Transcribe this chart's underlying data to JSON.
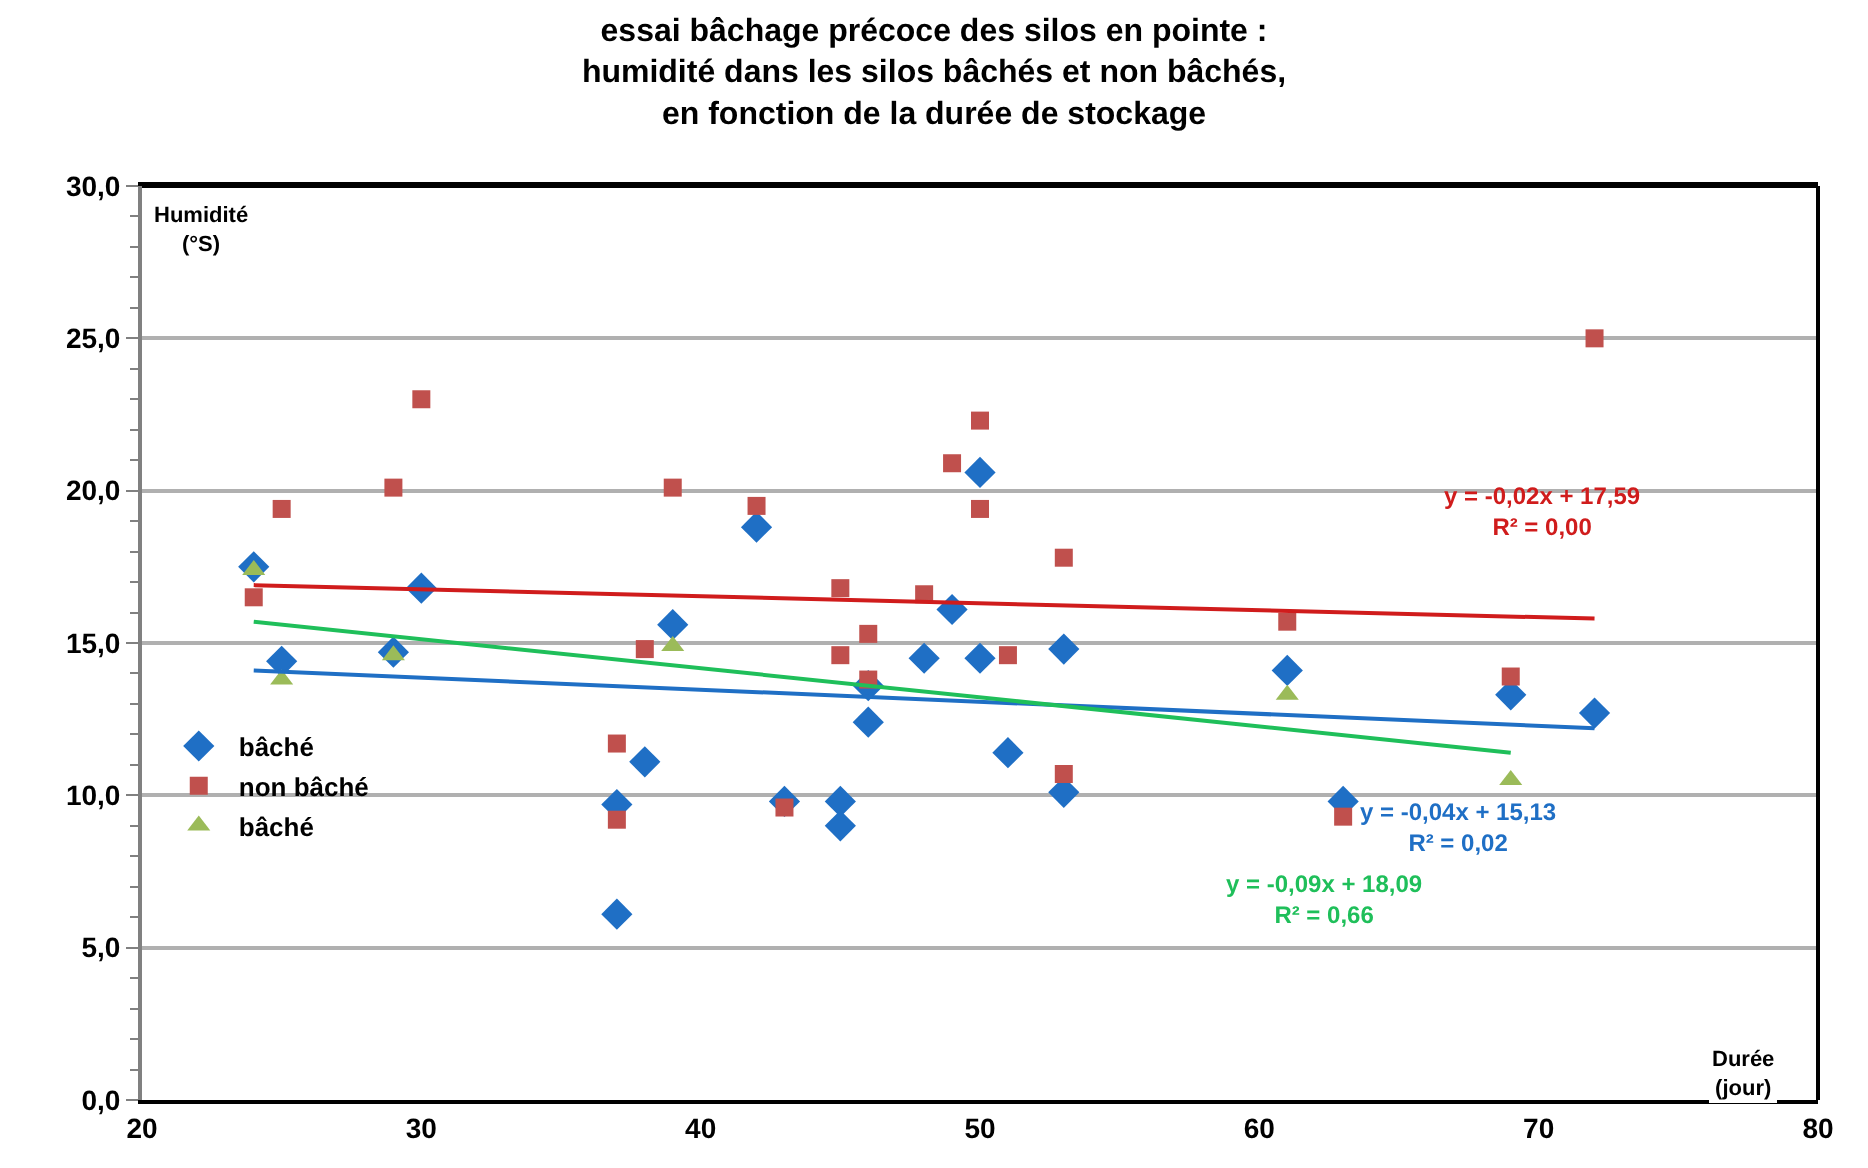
{
  "chart_data": {
    "type": "scatter",
    "title": "essai bâchage précoce des silos en pointe :\nhumidité dans les silos bâchés et non bâchés,\nen fonction de la durée de stockage",
    "xlabel": "Durée\n(jour)",
    "ylabel": "Humidité\n(°S)",
    "xlim": [
      20,
      80
    ],
    "xticks": [
      20,
      30,
      40,
      50,
      60,
      70,
      80
    ],
    "ylim": [
      0,
      30
    ],
    "yticks": [
      {
        "value": 0,
        "label": "0,0"
      },
      {
        "value": 1,
        "label": null
      },
      {
        "value": 2,
        "label": null
      },
      {
        "value": 3,
        "label": null
      },
      {
        "value": 4,
        "label": null
      },
      {
        "value": 5,
        "label": "5,0"
      },
      {
        "value": 6,
        "label": null
      },
      {
        "value": 7,
        "label": null
      },
      {
        "value": 8,
        "label": null
      },
      {
        "value": 9,
        "label": null
      },
      {
        "value": 10,
        "label": "10,0"
      },
      {
        "value": 11,
        "label": null
      },
      {
        "value": 12,
        "label": null
      },
      {
        "value": 13,
        "label": null
      },
      {
        "value": 14,
        "label": null
      },
      {
        "value": 15,
        "label": "15,0"
      },
      {
        "value": 16,
        "label": null
      },
      {
        "value": 17,
        "label": null
      },
      {
        "value": 18,
        "label": null
      },
      {
        "value": 19,
        "label": null
      },
      {
        "value": 20,
        "label": "20,0"
      },
      {
        "value": 21,
        "label": null
      },
      {
        "value": 22,
        "label": null
      },
      {
        "value": 23,
        "label": null
      },
      {
        "value": 24,
        "label": null
      },
      {
        "value": 25,
        "label": "25,0"
      },
      {
        "value": 26,
        "label": null
      },
      {
        "value": 27,
        "label": null
      },
      {
        "value": 28,
        "label": null
      },
      {
        "value": 29,
        "label": null
      },
      {
        "value": 30,
        "label": "30,0"
      }
    ],
    "grid": "y",
    "legend": "left",
    "series": [
      {
        "name": "bâché",
        "color": "#1f6fc5",
        "marker": "diamond",
        "x": [
          24,
          25,
          29,
          30,
          37,
          37,
          38,
          39,
          42,
          43,
          45,
          45,
          46,
          46,
          48,
          49,
          50,
          50,
          51,
          53,
          53,
          61,
          63,
          69,
          72
        ],
        "values": [
          17.5,
          14.4,
          14.7,
          16.8,
          9.7,
          6.1,
          11.1,
          15.6,
          18.8,
          9.8,
          9.8,
          9.0,
          12.4,
          13.6,
          14.5,
          16.1,
          20.6,
          14.5,
          11.4,
          14.8,
          10.1,
          14.1,
          9.8,
          13.3,
          12.7
        ]
      },
      {
        "name": "non bâché",
        "color": "#c0504d",
        "marker": "square",
        "x": [
          24,
          25,
          29,
          30,
          37,
          37,
          38,
          39,
          42,
          43,
          45,
          45,
          46,
          46,
          48,
          49,
          50,
          50,
          51,
          53,
          53,
          61,
          63,
          69,
          72
        ],
        "values": [
          16.5,
          19.4,
          20.1,
          23.0,
          11.7,
          9.2,
          14.8,
          20.1,
          19.5,
          9.6,
          16.8,
          14.6,
          15.3,
          13.8,
          16.6,
          20.9,
          22.3,
          19.4,
          14.6,
          17.8,
          10.7,
          15.7,
          9.3,
          13.9,
          25.0
        ]
      },
      {
        "name": "bâché",
        "color": "#9bbb59",
        "marker": "triangle",
        "x": [
          24,
          25,
          29,
          39,
          61,
          69
        ],
        "values": [
          17.4,
          13.8,
          14.6,
          14.9,
          13.3,
          10.5
        ]
      },
      {
        "type": "line",
        "color": "#1f6fc5",
        "x": [
          24,
          72
        ],
        "values": [
          14.1,
          12.2
        ]
      },
      {
        "type": "line",
        "color": "#d01c1c",
        "x": [
          24,
          72
        ],
        "values": [
          16.9,
          15.8
        ]
      },
      {
        "type": "line",
        "color": "#1fbf5a",
        "x": [
          24,
          69
        ],
        "values": [
          15.7,
          11.4
        ]
      }
    ],
    "annotations": [
      "y = -0,02x + 17,59\nR² = 0,00",
      "y = -0,04x + 15,13\nR² = 0,02",
      "y = -0,09x + 18,09\nR² = 0,66"
    ]
  }
}
